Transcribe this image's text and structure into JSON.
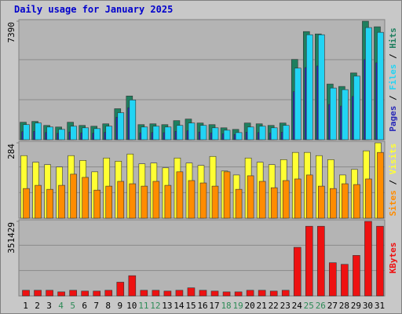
{
  "title": "Daily usage for January 2025",
  "separator": "/",
  "chart_data": [
    {
      "type": "bar",
      "ylim": [
        0,
        7390
      ],
      "yticks": [
        7390
      ],
      "series": [
        {
          "name": "Hits",
          "color": "#1f7f5f",
          "values": [
            1091,
            1141,
            893,
            794,
            1091,
            893,
            843,
            992,
            1934,
            2728,
            942,
            992,
            942,
            1190,
            1290,
            1042,
            942,
            744,
            645,
            1042,
            992,
            893,
            1042,
            5009,
            6745,
            6596,
            3472,
            3323,
            4166,
            7390,
            7043
          ]
        },
        {
          "name": "Files",
          "color": "#22d4f4",
          "values": [
            942,
            1042,
            794,
            645,
            843,
            744,
            694,
            843,
            1686,
            2480,
            794,
            843,
            794,
            893,
            1042,
            893,
            744,
            595,
            446,
            794,
            843,
            744,
            893,
            4464,
            6547,
            6547,
            3224,
            3125,
            3968,
            6993,
            6696
          ]
        },
        {
          "name": "Pages",
          "color": "#2a2ab8",
          "values": [
            500,
            520,
            450,
            400,
            480,
            430,
            410,
            460,
            1400,
            2000,
            430,
            450,
            440,
            520,
            560,
            480,
            430,
            380,
            330,
            470,
            450,
            420,
            470,
            3000,
            4500,
            4600,
            2200,
            2100,
            2700,
            5000,
            4800
          ]
        }
      ]
    },
    {
      "type": "bar",
      "ylim": [
        0,
        284
      ],
      "yticks": [
        284
      ],
      "series": [
        {
          "name": "Visits",
          "color": "#ffff33",
          "values": [
            236,
            211,
            202,
            193,
            236,
            218,
            175,
            227,
            215,
            242,
            205,
            208,
            190,
            227,
            208,
            199,
            233,
            178,
            163,
            227,
            211,
            202,
            221,
            248,
            248,
            236,
            221,
            163,
            184,
            254,
            284
          ]
        },
        {
          "name": "Sites",
          "color": "#ff8c00",
          "values": [
            112,
            124,
            109,
            124,
            166,
            154,
            106,
            121,
            139,
            130,
            121,
            139,
            124,
            175,
            142,
            133,
            121,
            175,
            109,
            160,
            139,
            115,
            142,
            148,
            163,
            121,
            112,
            130,
            127,
            148,
            248
          ]
        }
      ]
    },
    {
      "type": "bar",
      "ylim": [
        0,
        351429
      ],
      "yticks": [
        351429
      ],
      "categories": [
        "1",
        "2",
        "3",
        "4",
        "5",
        "6",
        "7",
        "8",
        "9",
        "10",
        "11",
        "12",
        "13",
        "14",
        "15",
        "16",
        "17",
        "18",
        "19",
        "20",
        "21",
        "22",
        "23",
        "24",
        "25",
        "26",
        "27",
        "28",
        "29",
        "30",
        "31"
      ],
      "category_colors": [
        "#000",
        "#000",
        "#000",
        "#2e8b57",
        "#2e8b57",
        "#000",
        "#000",
        "#000",
        "#000",
        "#000",
        "#2e8b57",
        "#2e8b57",
        "#000",
        "#000",
        "#000",
        "#000",
        "#000",
        "#2e8b57",
        "#2e8b57",
        "#000",
        "#000",
        "#000",
        "#000",
        "#000",
        "#2e8b57",
        "#2e8b57",
        "#000",
        "#000",
        "#000",
        "#000",
        "#000"
      ],
      "series": [
        {
          "name": "KBytes",
          "color": "#ee1111",
          "values": [
            26740,
            26740,
            26740,
            19100,
            26740,
            22920,
            22920,
            26740,
            64940,
            95500,
            26740,
            26740,
            22920,
            26740,
            38200,
            26740,
            22920,
            19100,
            19100,
            26740,
            26740,
            22920,
            26740,
            229200,
            328500,
            328500,
            156600,
            149000,
            191000,
            351429,
            328500
          ]
        }
      ]
    }
  ]
}
